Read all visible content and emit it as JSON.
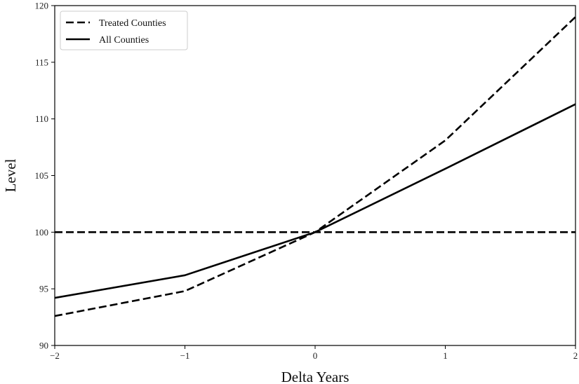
{
  "chart_data": {
    "type": "line",
    "title": "",
    "xlabel": "Delta Years",
    "ylabel": "Level",
    "xlim": [
      -2,
      2
    ],
    "ylim": [
      90,
      120
    ],
    "x_ticks": [
      -2,
      -1,
      0,
      1,
      2
    ],
    "x_tick_labels": [
      "−2",
      "−1",
      "0",
      "1",
      "2"
    ],
    "y_ticks": [
      90,
      95,
      100,
      105,
      110,
      115,
      120
    ],
    "y_tick_labels": [
      "90",
      "95",
      "100",
      "105",
      "110",
      "115",
      "120"
    ],
    "grid": false,
    "legend_position": "top-left",
    "series": [
      {
        "name": "Treated Counties",
        "style": "dashed",
        "color": "#000000",
        "x": [
          -2,
          -1,
          0,
          1,
          2
        ],
        "values": [
          92.6,
          94.8,
          100.0,
          108.1,
          119.0
        ]
      },
      {
        "name": "All Counties",
        "style": "solid",
        "color": "#000000",
        "x": [
          -2,
          -1,
          0,
          1,
          2
        ],
        "values": [
          94.2,
          96.2,
          100.0,
          105.6,
          111.3
        ]
      }
    ],
    "reference_line": {
      "y": 100,
      "style": "dashed",
      "color": "#000000"
    }
  }
}
